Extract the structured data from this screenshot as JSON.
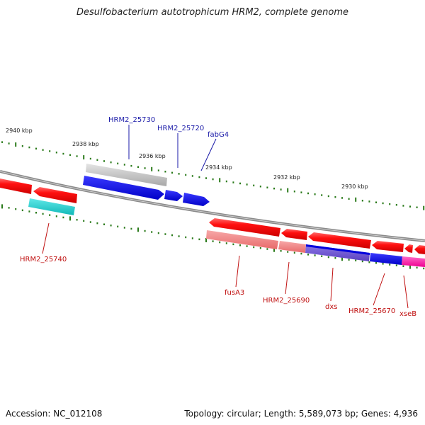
{
  "title": "Desulfobacterium autotrophicum HRM2, complete genome",
  "footer": {
    "accession": "Accession: NC_012108",
    "summary": "Topology: circular; Length: 5,589,073 bp; Genes: 4,936"
  },
  "ticks": [
    {
      "label": "2940 kbp"
    },
    {
      "label": "2938 kbp"
    },
    {
      "label": "2936 kbp"
    },
    {
      "label": "2934 kbp"
    },
    {
      "label": "2932 kbp"
    },
    {
      "label": "2930 kbp"
    }
  ],
  "genes": {
    "HRM2_25730": "HRM2_25730",
    "HRM2_25720": "HRM2_25720",
    "fabG4": "fabG4",
    "HRM2_25740": "HRM2_25740",
    "fusA3": "fusA3",
    "HRM2_25690": "HRM2_25690",
    "dxs": "dxs",
    "HRM2_25670": "HRM2_25670",
    "xseB": "xseB"
  },
  "colors": {
    "backbone": "#8a8a8a",
    "tick": "#2a7a1a",
    "red": "#ee0000",
    "pink": "#ee7777",
    "blue": "#0000dd",
    "purple": "#6a4fd0",
    "gray": "#bbbbbb",
    "cyan": "#11cccc",
    "magenta": "#ff1aa0",
    "label_blue": "#1a1aa8",
    "label_red": "#c01010"
  }
}
